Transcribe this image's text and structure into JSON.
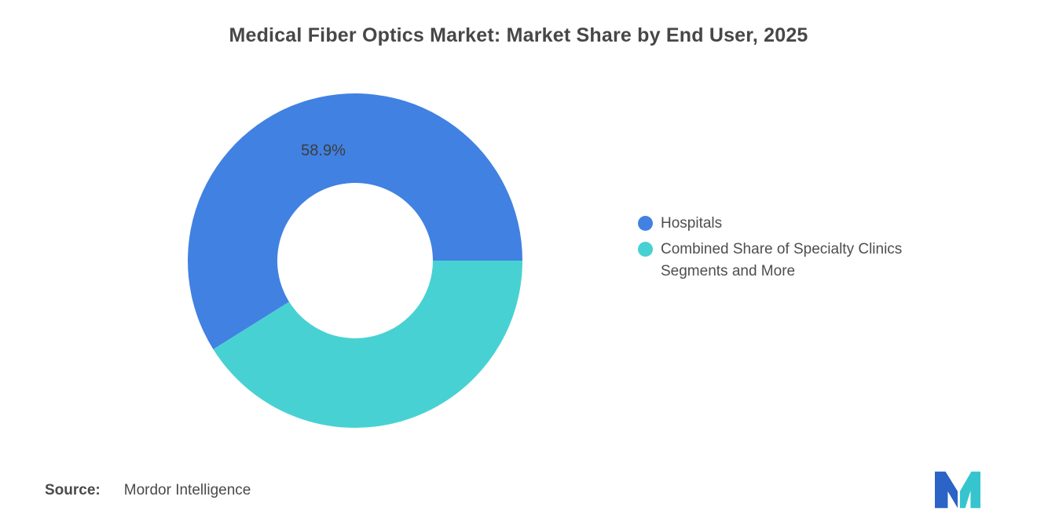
{
  "chart_data": {
    "type": "pie",
    "donut": true,
    "title": "Medical Fiber Optics Market: Market Share by End User, 2025",
    "inner_radius_ratio": 0.465,
    "start_angle_deg": 90,
    "direction": "counterclockwise",
    "legend_position": "right",
    "slices": [
      {
        "label": "Hospitals",
        "value": 58.9,
        "color": "#4181E2",
        "data_label": "58.9%",
        "show_label": true
      },
      {
        "label": "Combined Share of Specialty Clinics Segments and More",
        "value": 41.1,
        "color": "#48D1D2",
        "data_label": "41.1%",
        "show_label": false
      }
    ]
  },
  "legend": {
    "items": [
      {
        "label": "Hospitals",
        "color": "#4181E2"
      },
      {
        "line1": "Combined Share of Specialty Clinics",
        "line2": "Segments and More",
        "color": "#48D1D2"
      }
    ]
  },
  "source": {
    "prefix": "Source:",
    "text": "Mordor Intelligence"
  },
  "logo": {
    "name": "mordor-intelligence-logo",
    "blue": "#2B63C6",
    "teal": "#36C5CE"
  }
}
